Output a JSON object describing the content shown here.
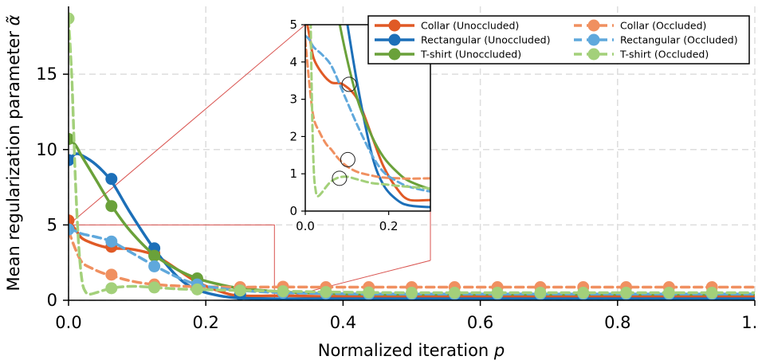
{
  "chart_data": {
    "type": "line",
    "xlabel": "Normalized iteration p",
    "ylabel": "Mean regularization parameter α̃",
    "xlim": [
      0,
      1.0
    ],
    "ylim": [
      0,
      19.5
    ],
    "x_ticks": [
      "0.0",
      "0.2",
      "0.4",
      "0.6",
      "0.8",
      "1.0"
    ],
    "y_ticks": [
      "0",
      "5",
      "10",
      "15"
    ],
    "grid": true,
    "legend": "top-right, 2 columns",
    "series": [
      {
        "name": "Collar (Unoccluded)",
        "color": "#e05a26",
        "style": "solid",
        "x": [
          0,
          0.01,
          0.02,
          0.04,
          0.0625,
          0.09,
          0.125,
          0.16,
          0.1875,
          0.22,
          0.25,
          0.3125,
          0.375,
          0.4375,
          0.5,
          0.5625,
          0.625,
          0.6875,
          0.75,
          0.8125,
          0.875,
          0.9375,
          1.0
        ],
        "values": [
          5.3,
          4.7,
          4.1,
          3.7,
          3.45,
          3.4,
          3.0,
          2.0,
          1.2,
          0.6,
          0.3,
          0.3,
          0.25,
          0.25,
          0.25,
          0.25,
          0.25,
          0.25,
          0.25,
          0.25,
          0.25,
          0.25,
          0.25
        ],
        "markers_x": [
          0,
          0.0625,
          0.125,
          0.1875,
          0.25
        ],
        "markers_y": [
          5.3,
          3.55,
          3.1,
          1.4,
          0.6
        ]
      },
      {
        "name": "Rectangular (Unoccluded)",
        "color": "#1c6fb8",
        "style": "solid",
        "x": [
          0,
          0.01,
          0.02,
          0.04,
          0.0625,
          0.09,
          0.125,
          0.16,
          0.1875,
          0.22,
          0.25,
          0.3125,
          0.375,
          0.4375,
          0.5,
          0.5625,
          0.625,
          0.6875,
          0.75,
          0.8125,
          0.875,
          0.9375,
          1.0
        ],
        "values": [
          9.3,
          9.7,
          9.6,
          9.0,
          7.9,
          5.8,
          3.4,
          1.5,
          0.7,
          0.3,
          0.15,
          0.1,
          0.1,
          0.1,
          0.1,
          0.1,
          0.1,
          0.1,
          0.1,
          0.1,
          0.1,
          0.1,
          0.1
        ],
        "markers_x": [
          0,
          0.0625,
          0.125,
          0.1875,
          0.25
        ],
        "markers_y": [
          9.3,
          8.05,
          3.45,
          1.1,
          0.4
        ]
      },
      {
        "name": "T-shirt (Unoccluded)",
        "color": "#6aa13a",
        "style": "solid",
        "x": [
          0,
          0.01,
          0.02,
          0.04,
          0.0625,
          0.09,
          0.125,
          0.16,
          0.1875,
          0.22,
          0.25,
          0.3125,
          0.375,
          0.4375,
          0.5,
          0.5625,
          0.625,
          0.6875,
          0.75,
          0.8125,
          0.875,
          0.9375,
          1.0
        ],
        "values": [
          10.7,
          10.3,
          9.5,
          8.0,
          6.3,
          4.6,
          3.0,
          2.0,
          1.45,
          1.05,
          0.8,
          0.55,
          0.45,
          0.4,
          0.4,
          0.4,
          0.4,
          0.4,
          0.4,
          0.4,
          0.4,
          0.4,
          0.4
        ],
        "markers_x": [
          0,
          0.0625,
          0.125,
          0.1875,
          0.25
        ],
        "markers_y": [
          10.7,
          6.25,
          2.95,
          1.45,
          0.85
        ]
      },
      {
        "name": "Collar (Occluded)",
        "color": "#f09060",
        "style": "dashed",
        "x": [
          0,
          0.01,
          0.02,
          0.035,
          0.05,
          0.0625,
          0.08,
          0.1,
          0.125,
          0.16,
          0.1875,
          0.22,
          0.25,
          0.3125,
          0.375,
          0.4375,
          0.5,
          0.5625,
          0.625,
          0.6875,
          0.75,
          0.8125,
          0.875,
          0.9375,
          1.0
        ],
        "values": [
          4.6,
          3.4,
          2.5,
          2.1,
          1.8,
          1.65,
          1.4,
          1.2,
          1.05,
          0.95,
          0.9,
          0.88,
          0.87,
          0.88,
          0.87,
          0.87,
          0.87,
          0.87,
          0.87,
          0.87,
          0.87,
          0.87,
          0.87,
          0.87,
          0.87
        ],
        "markers_x": [
          0.0625,
          0.125,
          0.1875,
          0.25,
          0.3125,
          0.375,
          0.4375,
          0.5,
          0.5625,
          0.625,
          0.6875,
          0.75,
          0.8125,
          0.875,
          0.9375
        ],
        "markers_y": [
          1.7,
          1.05,
          0.9,
          0.87,
          0.9,
          0.87,
          0.87,
          0.87,
          0.87,
          0.87,
          0.87,
          0.87,
          0.87,
          0.87,
          0.87
        ]
      },
      {
        "name": "Rectangular (Occluded)",
        "color": "#5fa8dc",
        "style": "dashed",
        "x": [
          0,
          0.01,
          0.02,
          0.04,
          0.0625,
          0.09,
          0.125,
          0.16,
          0.1875,
          0.22,
          0.25,
          0.3125,
          0.375,
          0.4375,
          0.5,
          0.5625,
          0.625,
          0.6875,
          0.75,
          0.8125,
          0.875,
          0.9375,
          1.0
        ],
        "values": [
          4.7,
          4.6,
          4.4,
          4.2,
          3.9,
          3.2,
          2.3,
          1.5,
          1.05,
          0.8,
          0.65,
          0.5,
          0.45,
          0.42,
          0.42,
          0.42,
          0.42,
          0.42,
          0.42,
          0.42,
          0.42,
          0.42,
          0.42
        ],
        "markers_x": [
          0,
          0.0625,
          0.125,
          0.1875,
          0.25,
          0.3125,
          0.375,
          0.4375,
          0.5,
          0.5625,
          0.625,
          0.6875,
          0.75,
          0.8125,
          0.875,
          0.9375
        ],
        "markers_y": [
          4.7,
          3.9,
          2.25,
          1.05,
          0.65,
          0.5,
          0.45,
          0.42,
          0.42,
          0.42,
          0.42,
          0.42,
          0.42,
          0.42,
          0.42,
          0.42
        ]
      },
      {
        "name": "T-shirt (Occluded)",
        "color": "#a3d07a",
        "style": "dashed",
        "x": [
          0,
          0.005,
          0.01,
          0.015,
          0.02,
          0.025,
          0.03,
          0.04,
          0.05,
          0.0625,
          0.08,
          0.1,
          0.125,
          0.16,
          0.1875,
          0.22,
          0.25,
          0.3125,
          0.375,
          0.4375,
          0.5,
          0.5625,
          0.625,
          0.6875,
          0.75,
          0.8125,
          0.875,
          0.9375,
          1.0
        ],
        "values": [
          18.7,
          14.5,
          8.0,
          3.5,
          1.2,
          0.55,
          0.4,
          0.5,
          0.65,
          0.8,
          0.9,
          0.92,
          0.85,
          0.75,
          0.72,
          0.68,
          0.65,
          0.6,
          0.55,
          0.52,
          0.5,
          0.5,
          0.5,
          0.5,
          0.5,
          0.5,
          0.5,
          0.5,
          0.5
        ],
        "markers_x": [
          0,
          0.0625,
          0.125,
          0.1875,
          0.25,
          0.3125,
          0.375,
          0.4375,
          0.5,
          0.5625,
          0.625,
          0.6875,
          0.75,
          0.8125,
          0.875,
          0.9375
        ],
        "markers_y": [
          18.7,
          0.8,
          0.85,
          0.72,
          0.65,
          0.6,
          0.55,
          0.52,
          0.5,
          0.5,
          0.5,
          0.5,
          0.5,
          0.5,
          0.5,
          0.5
        ]
      }
    ],
    "inset": {
      "xlim": [
        0,
        0.3
      ],
      "ylim": [
        0,
        5
      ],
      "x_ticks": [
        "0.0",
        "0.2"
      ],
      "y_ticks": [
        "0",
        "1",
        "2",
        "3",
        "4",
        "5"
      ],
      "highlight_circles": [
        {
          "x": 0.105,
          "y": 3.4
        },
        {
          "x": 0.102,
          "y": 1.38
        },
        {
          "x": 0.082,
          "y": 0.88
        }
      ]
    }
  }
}
